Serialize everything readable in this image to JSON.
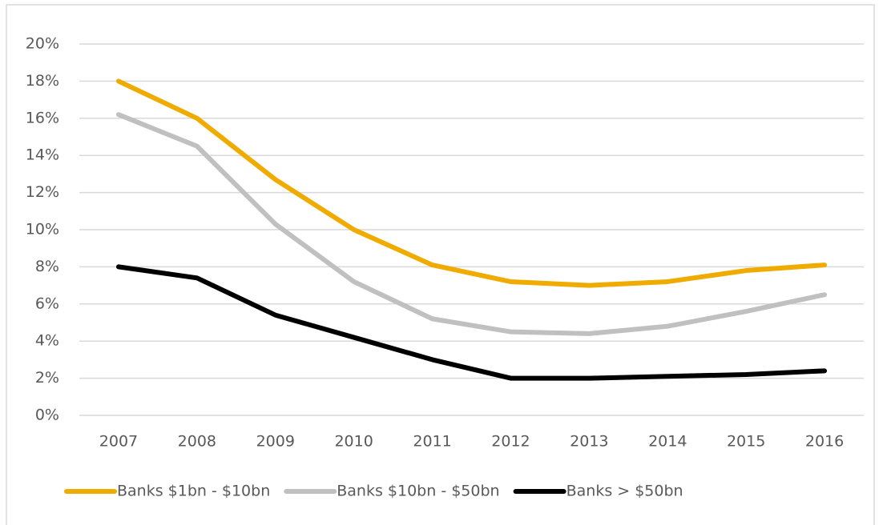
{
  "chart_data": {
    "type": "line",
    "categories": [
      "2007",
      "2008",
      "2009",
      "2010",
      "2011",
      "2012",
      "2013",
      "2014",
      "2015",
      "2016"
    ],
    "series": [
      {
        "name": "Banks $1bn - $10bn",
        "color": "#f0ab00",
        "values": [
          18,
          16,
          12.7,
          10,
          8.1,
          7.2,
          7.0,
          7.2,
          7.8,
          8.1
        ]
      },
      {
        "name": "Banks $10bn - $50bn",
        "color": "#c0c0c0",
        "values": [
          16.2,
          14.5,
          10.3,
          7.2,
          5.2,
          4.5,
          4.4,
          4.8,
          5.6,
          6.5
        ]
      },
      {
        "name": "Banks > $50bn",
        "color": "#000000",
        "values": [
          8.0,
          7.4,
          5.4,
          4.2,
          3.0,
          2.0,
          2.0,
          2.1,
          2.2,
          2.4
        ]
      }
    ],
    "ylim": [
      0,
      20
    ],
    "yticks": [
      {
        "value": 0,
        "label": "0%"
      },
      {
        "value": 2,
        "label": "2%"
      },
      {
        "value": 4,
        "label": "4%"
      },
      {
        "value": 6,
        "label": "6%"
      },
      {
        "value": 8,
        "label": "8%"
      },
      {
        "value": 10,
        "label": "10%"
      },
      {
        "value": 12,
        "label": "12%"
      },
      {
        "value": 14,
        "label": "14%"
      },
      {
        "value": 16,
        "label": "16%"
      },
      {
        "value": 18,
        "label": "18%"
      },
      {
        "value": 20,
        "label": "20%"
      }
    ],
    "grid": true,
    "legend": "bottom"
  }
}
